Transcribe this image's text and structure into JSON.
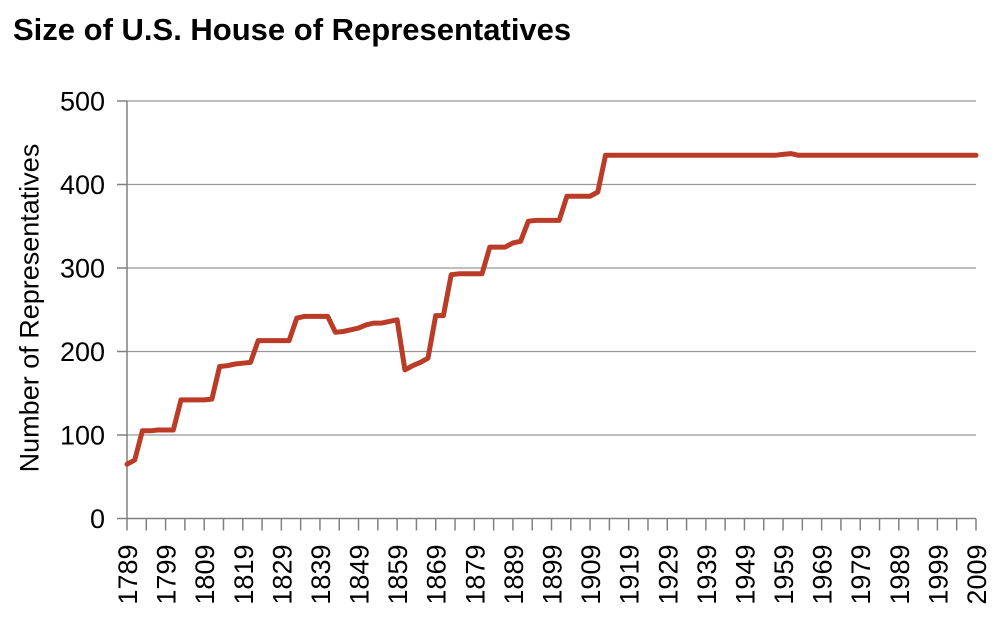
{
  "chart_data": {
    "type": "line",
    "title": "Size of U.S. House of Representatives",
    "ylabel": "Number of Representatives",
    "xlabel": "",
    "x_range": [
      1789,
      2009
    ],
    "ylim": [
      0,
      500
    ],
    "y_ticks": [
      0,
      100,
      200,
      300,
      400,
      500
    ],
    "x_tick_labels": [
      "1789",
      "1799",
      "1809",
      "1819",
      "1829",
      "1839",
      "1849",
      "1859",
      "1869",
      "1879",
      "1889",
      "1899",
      "1909",
      "1919",
      "1929",
      "1939",
      "1949",
      "1959",
      "1969",
      "1979",
      "1989",
      "1999",
      "2009"
    ],
    "x_tick_minor_step": 5,
    "grid": "horizontal",
    "legend": "none",
    "line_width": 5,
    "colors": {
      "line": "#BA3B26",
      "grid": "#969696",
      "axis": "#808080",
      "text": "#000000",
      "background": "#FFFFFF"
    },
    "series": [
      {
        "name": "Number of Representatives",
        "points": [
          [
            1789,
            65
          ],
          [
            1791,
            70
          ],
          [
            1793,
            105
          ],
          [
            1795,
            105
          ],
          [
            1797,
            106
          ],
          [
            1801,
            106
          ],
          [
            1803,
            142
          ],
          [
            1809,
            142
          ],
          [
            1811,
            143
          ],
          [
            1813,
            182
          ],
          [
            1815,
            183
          ],
          [
            1817,
            185
          ],
          [
            1819,
            186
          ],
          [
            1821,
            187
          ],
          [
            1823,
            213
          ],
          [
            1831,
            213
          ],
          [
            1833,
            240
          ],
          [
            1835,
            242
          ],
          [
            1841,
            242
          ],
          [
            1843,
            223
          ],
          [
            1845,
            224
          ],
          [
            1847,
            226
          ],
          [
            1849,
            228
          ],
          [
            1851,
            232
          ],
          [
            1853,
            234
          ],
          [
            1855,
            234
          ],
          [
            1857,
            236
          ],
          [
            1859,
            238
          ],
          [
            1861,
            178
          ],
          [
            1863,
            183
          ],
          [
            1865,
            187
          ],
          [
            1867,
            192
          ],
          [
            1869,
            243
          ],
          [
            1871,
            243
          ],
          [
            1873,
            292
          ],
          [
            1875,
            293
          ],
          [
            1881,
            293
          ],
          [
            1883,
            325
          ],
          [
            1887,
            325
          ],
          [
            1889,
            330
          ],
          [
            1891,
            332
          ],
          [
            1893,
            356
          ],
          [
            1895,
            357
          ],
          [
            1901,
            357
          ],
          [
            1903,
            386
          ],
          [
            1909,
            386
          ],
          [
            1911,
            391
          ],
          [
            1913,
            435
          ],
          [
            1957,
            435
          ],
          [
            1959,
            436
          ],
          [
            1961,
            437
          ],
          [
            1963,
            435
          ],
          [
            2009,
            435
          ]
        ]
      }
    ]
  }
}
